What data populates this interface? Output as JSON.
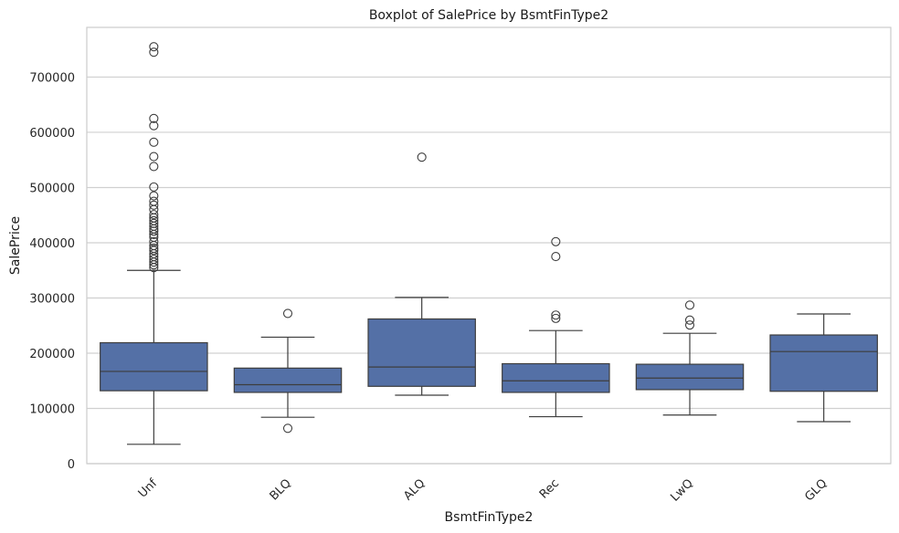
{
  "chart_data": {
    "type": "box",
    "title": "Boxplot of SalePrice by BsmtFinType2",
    "xlabel": "BsmtFinType2",
    "ylabel": "SalePrice",
    "ylim": [
      0,
      790000
    ],
    "yticks": [
      0,
      100000,
      200000,
      300000,
      400000,
      500000,
      600000,
      700000
    ],
    "ytick_labels": [
      "0",
      "100000",
      "200000",
      "300000",
      "400000",
      "500000",
      "600000",
      "700000"
    ],
    "grid": "horizontal",
    "box_color": "#5470a6",
    "categories": [
      "Unf",
      "BLQ",
      "ALQ",
      "Rec",
      "LwQ",
      "GLQ"
    ],
    "boxes": [
      {
        "category": "Unf",
        "whisker_low": 35000,
        "q1": 132000,
        "median": 167000,
        "q3": 219000,
        "whisker_high": 350000,
        "outliers": [
          755000,
          745000,
          625000,
          612000,
          582000,
          556000,
          538000,
          501000,
          485000,
          475000,
          468000,
          460000,
          451000,
          445000,
          440000,
          435000,
          430000,
          425000,
          421000,
          415000,
          410000,
          402000,
          395000,
          390000,
          386000,
          380000,
          375000,
          370000,
          365000,
          360000,
          355000
        ]
      },
      {
        "category": "BLQ",
        "whisker_low": 84000,
        "q1": 129000,
        "median": 143000,
        "q3": 173000,
        "whisker_high": 229000,
        "outliers": [
          272000,
          64000
        ]
      },
      {
        "category": "ALQ",
        "whisker_low": 124000,
        "q1": 140000,
        "median": 175000,
        "q3": 262000,
        "whisker_high": 301000,
        "outliers": [
          555000
        ]
      },
      {
        "category": "Rec",
        "whisker_low": 85000,
        "q1": 129000,
        "median": 150000,
        "q3": 181000,
        "whisker_high": 241000,
        "outliers": [
          402000,
          375000,
          269000,
          263000
        ]
      },
      {
        "category": "LwQ",
        "whisker_low": 88000,
        "q1": 134000,
        "median": 155000,
        "q3": 180000,
        "whisker_high": 236000,
        "outliers": [
          287000,
          260000,
          251000
        ]
      },
      {
        "category": "GLQ",
        "whisker_low": 76000,
        "q1": 131000,
        "median": 203000,
        "q3": 233000,
        "whisker_high": 271000,
        "outliers": []
      }
    ]
  }
}
